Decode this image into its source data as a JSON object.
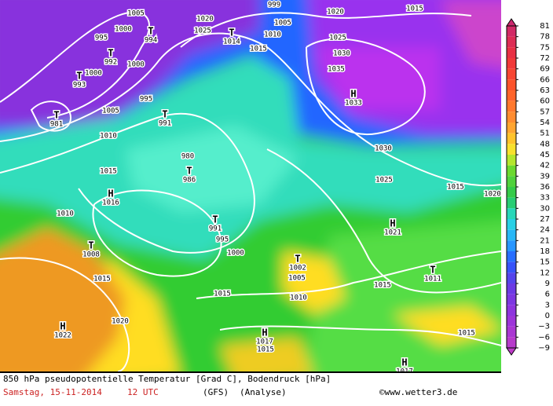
{
  "title": "850 hPa pseudopotentielle Temperatur [Grad C], Bodendruck [hPa]",
  "date": "Samstag, 15-11-2014",
  "time": "12 UTC",
  "model": "(GFS)",
  "run": "(Analyse)",
  "credit": "©www.wetter3.de",
  "legend": {
    "ticks": [
      81,
      78,
      75,
      72,
      69,
      66,
      63,
      60,
      57,
      54,
      51,
      48,
      45,
      42,
      39,
      36,
      33,
      30,
      27,
      24,
      21,
      18,
      15,
      12,
      9,
      6,
      3,
      0,
      {
        "value": -3,
        "label": "−3"
      },
      {
        "value": -6,
        "label": "−6"
      },
      {
        "value": -9,
        "label": "−9"
      }
    ]
  },
  "pressure_centers": [
    {
      "symbol": "T",
      "value": "992"
    },
    {
      "symbol": "T",
      "value": "993"
    },
    {
      "symbol": "T",
      "value": "981"
    },
    {
      "symbol": "T",
      "value": "994"
    },
    {
      "symbol": "T",
      "value": "1014"
    },
    {
      "symbol": "H",
      "value": "1033"
    },
    {
      "symbol": "T",
      "value": "991"
    },
    {
      "symbol": "T",
      "value": "986"
    },
    {
      "symbol": "H",
      "value": "1016"
    },
    {
      "symbol": "T",
      "value": "991"
    },
    {
      "symbol": "T",
      "value": "1008"
    },
    {
      "symbol": "H",
      "value": "1021"
    },
    {
      "symbol": "T",
      "value": "1002"
    },
    {
      "symbol": "T",
      "value": "1011"
    },
    {
      "symbol": "H",
      "value": "1022"
    },
    {
      "symbol": "H",
      "value": "1017"
    },
    {
      "symbol": "H",
      "value": "1017"
    }
  ],
  "isobar_labels": [
    "1005",
    "1000",
    "995",
    "1000",
    "1000",
    "1005",
    "1010",
    "995",
    "1020",
    "1025",
    "1010",
    "1005",
    "1015",
    "999",
    "1020",
    "1015",
    "1025",
    "1030",
    "1035",
    "1030",
    "1025",
    "1015",
    "1020",
    "980",
    "1015",
    "1010",
    "995",
    "1000",
    "1015",
    "1005",
    "1010",
    "1015",
    "1015",
    "1020",
    "1015",
    "1015"
  ]
}
